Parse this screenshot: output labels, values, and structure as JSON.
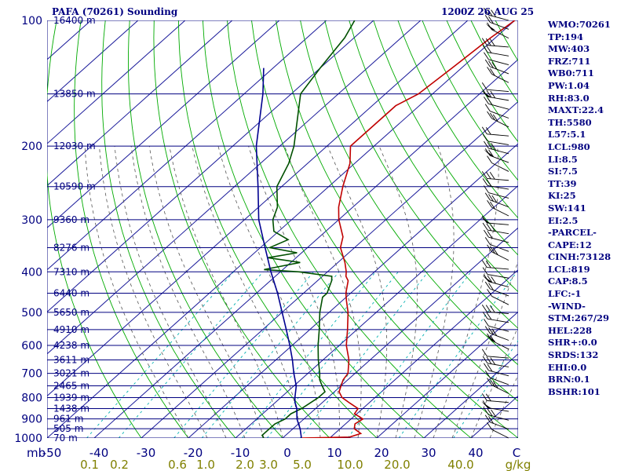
{
  "header": {
    "station_title": "PAFA (70261) Sounding",
    "time_title": "1200Z 26 AUG 25"
  },
  "stats": [
    "WMO:70261",
    "TP:194",
    "MW:403",
    "FRZ:711",
    "WB0:711",
    "PW:1.04",
    "RH:83.0",
    "MAXT:22.4",
    "TH:5580",
    "L57:5.1",
    "LCL:980",
    "LI:8.5",
    "SI:7.5",
    "TT:39",
    "KI:25",
    "SW:141",
    "EI:2.5",
    "-PARCEL-",
    "CAPE:12",
    "CINH:73128",
    "LCL:819",
    "CAP:8.5",
    "LFC:-1",
    "-WIND-",
    "STM:267/29",
    "HEL:228",
    "SHR+:0.0",
    "SRDS:132",
    "EHI:0.0",
    "BRN:0.1",
    "BSHR:101"
  ],
  "chart_data": {
    "type": "line",
    "title": "PAFA (70261) Sounding",
    "subtitle": "1200Z 26 AUG 25",
    "x_axis": {
      "range": [
        -50,
        50
      ],
      "unit_label": "C",
      "ticks": [
        "-50",
        "-40",
        "-30",
        "-20",
        "-10",
        "0",
        "10",
        "20",
        "30",
        "40"
      ]
    },
    "y_axis": {
      "scale": "log",
      "unit_label": "mb",
      "range": [
        1000,
        100
      ],
      "ticks": [
        1000,
        900,
        800,
        700,
        600,
        500,
        400,
        300,
        200,
        100
      ],
      "tick_labels": [
        "1000",
        "900",
        "800",
        "700",
        "600",
        "500",
        "400",
        "300",
        "200",
        "100"
      ]
    },
    "height_labels": [
      {
        "p": 1000,
        "label": "70 m"
      },
      {
        "p": 950,
        "label": "505 m"
      },
      {
        "p": 900,
        "label": "961 m"
      },
      {
        "p": 850,
        "label": "1438 m"
      },
      {
        "p": 800,
        "label": "1939 m"
      },
      {
        "p": 750,
        "label": "2465 m"
      },
      {
        "p": 700,
        "label": "3021 m"
      },
      {
        "p": 650,
        "label": "3611 m"
      },
      {
        "p": 600,
        "label": "4238 m"
      },
      {
        "p": 550,
        "label": "4910 m"
      },
      {
        "p": 500,
        "label": "5650 m"
      },
      {
        "p": 450,
        "label": "6440 m"
      },
      {
        "p": 400,
        "label": "7310 m"
      },
      {
        "p": 350,
        "label": "8276 m"
      },
      {
        "p": 300,
        "label": "9360 m"
      },
      {
        "p": 250,
        "label": "10590 m"
      },
      {
        "p": 200,
        "label": "12030 m"
      },
      {
        "p": 150,
        "label": "13850 m"
      },
      {
        "p": 100,
        "label": "16400 m"
      }
    ],
    "mixing_ratio_labels": [
      "0.1",
      "0.2",
      "0.6",
      "1.0",
      "2.0",
      "3.0",
      "5.0",
      "10.0",
      "20.0",
      "40.0"
    ],
    "mixing_ratio_unit": "g/kg",
    "series": [
      {
        "name": "Temperature",
        "color": "#c00000",
        "points": [
          [
            1000,
            4
          ],
          [
            995,
            14
          ],
          [
            975,
            15.5
          ],
          [
            950,
            13
          ],
          [
            925,
            12
          ],
          [
            900,
            12.5
          ],
          [
            875,
            9.5
          ],
          [
            850,
            9
          ],
          [
            825,
            6
          ],
          [
            800,
            3
          ],
          [
            775,
            1
          ],
          [
            750,
            0
          ],
          [
            725,
            -1
          ],
          [
            700,
            -1.5
          ],
          [
            650,
            -4.5
          ],
          [
            600,
            -8.5
          ],
          [
            550,
            -12
          ],
          [
            500,
            -16
          ],
          [
            470,
            -19
          ],
          [
            450,
            -21
          ],
          [
            420,
            -23.5
          ],
          [
            410,
            -25
          ],
          [
            400,
            -26
          ],
          [
            380,
            -28.5
          ],
          [
            350,
            -33
          ],
          [
            330,
            -35
          ],
          [
            300,
            -40
          ],
          [
            280,
            -43
          ],
          [
            250,
            -47
          ],
          [
            220,
            -51
          ],
          [
            200,
            -55
          ],
          [
            160,
            -55
          ],
          [
            150,
            -53
          ],
          [
            130,
            -52
          ],
          [
            110,
            -51
          ],
          [
            100,
            -50
          ]
        ]
      },
      {
        "name": "Dewpoint",
        "color": "#005000",
        "points": [
          [
            1000,
            -4
          ],
          [
            985,
            -5
          ],
          [
            950,
            -5
          ],
          [
            925,
            -5
          ],
          [
            900,
            -4
          ],
          [
            875,
            -4
          ],
          [
            850,
            -3
          ],
          [
            800,
            -2
          ],
          [
            775,
            -2
          ],
          [
            750,
            -4
          ],
          [
            725,
            -6
          ],
          [
            700,
            -7.5
          ],
          [
            650,
            -11
          ],
          [
            600,
            -14.5
          ],
          [
            550,
            -18
          ],
          [
            500,
            -22
          ],
          [
            460,
            -25
          ],
          [
            450,
            -25
          ],
          [
            420,
            -27
          ],
          [
            410,
            -28
          ],
          [
            400,
            -36
          ],
          [
            395,
            -44
          ],
          [
            380,
            -38
          ],
          [
            370,
            -46
          ],
          [
            360,
            -41
          ],
          [
            350,
            -48
          ],
          [
            335,
            -46
          ],
          [
            320,
            -51
          ],
          [
            300,
            -54
          ],
          [
            280,
            -56
          ],
          [
            250,
            -61
          ],
          [
            220,
            -64
          ],
          [
            200,
            -67
          ],
          [
            150,
            -78
          ],
          [
            130,
            -80
          ],
          [
            110,
            -82
          ],
          [
            100,
            -84
          ]
        ]
      },
      {
        "name": "Parcel",
        "color": "#000090",
        "points": [
          [
            1000,
            4
          ],
          [
            950,
            1.5
          ],
          [
            900,
            -1.5
          ],
          [
            850,
            -4
          ],
          [
            819,
            -6
          ],
          [
            800,
            -7
          ],
          [
            750,
            -9.5
          ],
          [
            700,
            -13
          ],
          [
            650,
            -16.5
          ],
          [
            600,
            -20.5
          ],
          [
            550,
            -25
          ],
          [
            500,
            -30
          ],
          [
            450,
            -35.5
          ],
          [
            400,
            -42
          ],
          [
            350,
            -49
          ],
          [
            300,
            -57
          ],
          [
            250,
            -65
          ],
          [
            200,
            -75
          ],
          [
            150,
            -86
          ],
          [
            130,
            -92
          ]
        ]
      }
    ],
    "wind_barbs": {
      "count": 48,
      "pressure_range": [
        1000,
        100
      ]
    }
  },
  "colors": {
    "isobar": "#000080",
    "isotherm": "#1a1a9a",
    "dry_adiabat": "#00aa00",
    "moist_adiabat": "#555555",
    "mixing_ratio": "#00b0b0",
    "temperature": "#c00000",
    "dewpoint": "#005000",
    "parcel": "#000090",
    "label": "#000080",
    "mixing_label": "#808000"
  }
}
